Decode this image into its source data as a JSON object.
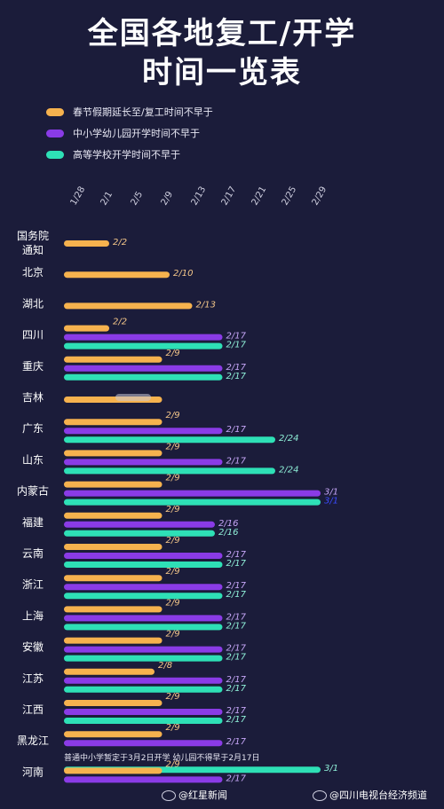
{
  "title_line1": "全国各地复工/开学",
  "title_line2": "时间一览表",
  "colors": {
    "background": "#1b1c3a",
    "work": "#f6b24e",
    "school": "#8a3be6",
    "college": "#2ee0b6",
    "label_work": "#f6c88a",
    "label_school": "#c6a6f7",
    "label_college": "#8ff0d8",
    "label_bright": "#3b4bff"
  },
  "footer": {
    "left": "@红星新闻",
    "right": "@四川电视台经济频道"
  },
  "chart_data": {
    "type": "bar",
    "orientation": "horizontal",
    "x_ticks": [
      "1/28",
      "2/1",
      "2/5",
      "2/9",
      "2/13",
      "2/17",
      "2/21",
      "2/25",
      "2/29"
    ],
    "legend": [
      {
        "key": "work",
        "label": "春节假期延长至/复工时间不早于"
      },
      {
        "key": "school",
        "label": "中小学幼儿园开学时间不早于"
      },
      {
        "key": "college",
        "label": "高等学校开学时间不早于"
      }
    ],
    "rows": [
      {
        "name": [
          "国务院",
          "通知"
        ],
        "work": "2/2"
      },
      {
        "name": [
          "北京"
        ],
        "work": "2/10"
      },
      {
        "name": [
          "湖北"
        ],
        "work": "2/13"
      },
      {
        "name": [
          "四川"
        ],
        "work": "2/2",
        "school": "2/17",
        "college": "2/17"
      },
      {
        "name": [
          "重庆"
        ],
        "work": "2/9",
        "school": "2/17",
        "college": "2/17"
      },
      {
        "name": [
          "吉林"
        ],
        "work": "2/9",
        "work_label_hidden": true
      },
      {
        "name": [
          "广东"
        ],
        "work": "2/9",
        "school": "2/17",
        "college": "2/24"
      },
      {
        "name": [
          "山东"
        ],
        "work": "2/9",
        "school": "2/17",
        "college": "2/24"
      },
      {
        "name": [
          "内蒙古"
        ],
        "work": "2/9",
        "school": "3/1",
        "college": "3/1"
      },
      {
        "name": [
          "福建"
        ],
        "work": "2/9",
        "school": "2/16",
        "college": "2/16"
      },
      {
        "name": [
          "云南"
        ],
        "work": "2/9",
        "school": "2/17",
        "college": "2/17"
      },
      {
        "name": [
          "浙江"
        ],
        "work": "2/9",
        "school": "2/17",
        "college": "2/17"
      },
      {
        "name": [
          "上海"
        ],
        "work": "2/9",
        "school": "2/17",
        "college": "2/17"
      },
      {
        "name": [
          "安徽"
        ],
        "work": "2/9",
        "school": "2/17",
        "college": "2/17"
      },
      {
        "name": [
          "江苏"
        ],
        "work": "2/8",
        "school": "2/17",
        "college": "2/17"
      },
      {
        "name": [
          "江西"
        ],
        "work": "2/9",
        "school": "2/17",
        "college": "2/17"
      },
      {
        "name": [
          "黑龙江"
        ],
        "work": "2/9",
        "school": "2/17",
        "note": "普通中小学暂定于3月2日开学 幼儿园不得早于2月17日",
        "college": "3/1"
      },
      {
        "name": [
          "河南"
        ],
        "work": "2/9",
        "school": "2/17"
      }
    ]
  }
}
